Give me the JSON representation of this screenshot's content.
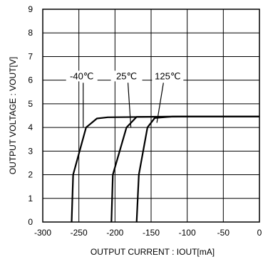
{
  "chart_data": {
    "type": "line",
    "xlabel": "OUTPUT CURRENT : IOUT[mA]",
    "ylabel": "OUTPUT VOLTAGE : VOUT[V]",
    "xlim": [
      -300,
      0
    ],
    "ylim": [
      0,
      9
    ],
    "x_ticks": [
      "-300",
      "-250",
      "-200",
      "-150",
      "-100",
      "-50",
      "0"
    ],
    "y_ticks": [
      "0",
      "1",
      "2",
      "3",
      "4",
      "5",
      "6",
      "7",
      "8",
      "9"
    ],
    "grid": true,
    "annotations": [
      {
        "text": "-40℃",
        "x": -246,
        "y": 6.1,
        "target": [
          -244,
          4.0
        ]
      },
      {
        "text": "25℃",
        "x": -184,
        "y": 6.1,
        "target": [
          -178,
          4.0
        ]
      },
      {
        "text": "125℃",
        "x": -127,
        "y": 6.1,
        "target": [
          -142,
          4.2
        ]
      }
    ],
    "series": [
      {
        "points": [
          [
            -260,
            0
          ],
          [
            -258,
            2
          ],
          [
            -240,
            4.0
          ],
          [
            -225,
            4.38
          ],
          [
            -210,
            4.43
          ],
          [
            -150,
            4.45
          ],
          [
            -100,
            4.46
          ],
          [
            0,
            4.46
          ]
        ]
      },
      {
        "points": [
          [
            -205,
            0
          ],
          [
            -203,
            2
          ],
          [
            -184,
            4.0
          ],
          [
            -170,
            4.45
          ],
          [
            -120,
            4.46
          ],
          [
            0,
            4.46
          ]
        ]
      },
      {
        "points": [
          [
            -170,
            0
          ],
          [
            -167,
            2
          ],
          [
            -155,
            4.0
          ],
          [
            -145,
            4.4
          ],
          [
            -120,
            4.46
          ],
          [
            0,
            4.46
          ]
        ]
      }
    ]
  }
}
